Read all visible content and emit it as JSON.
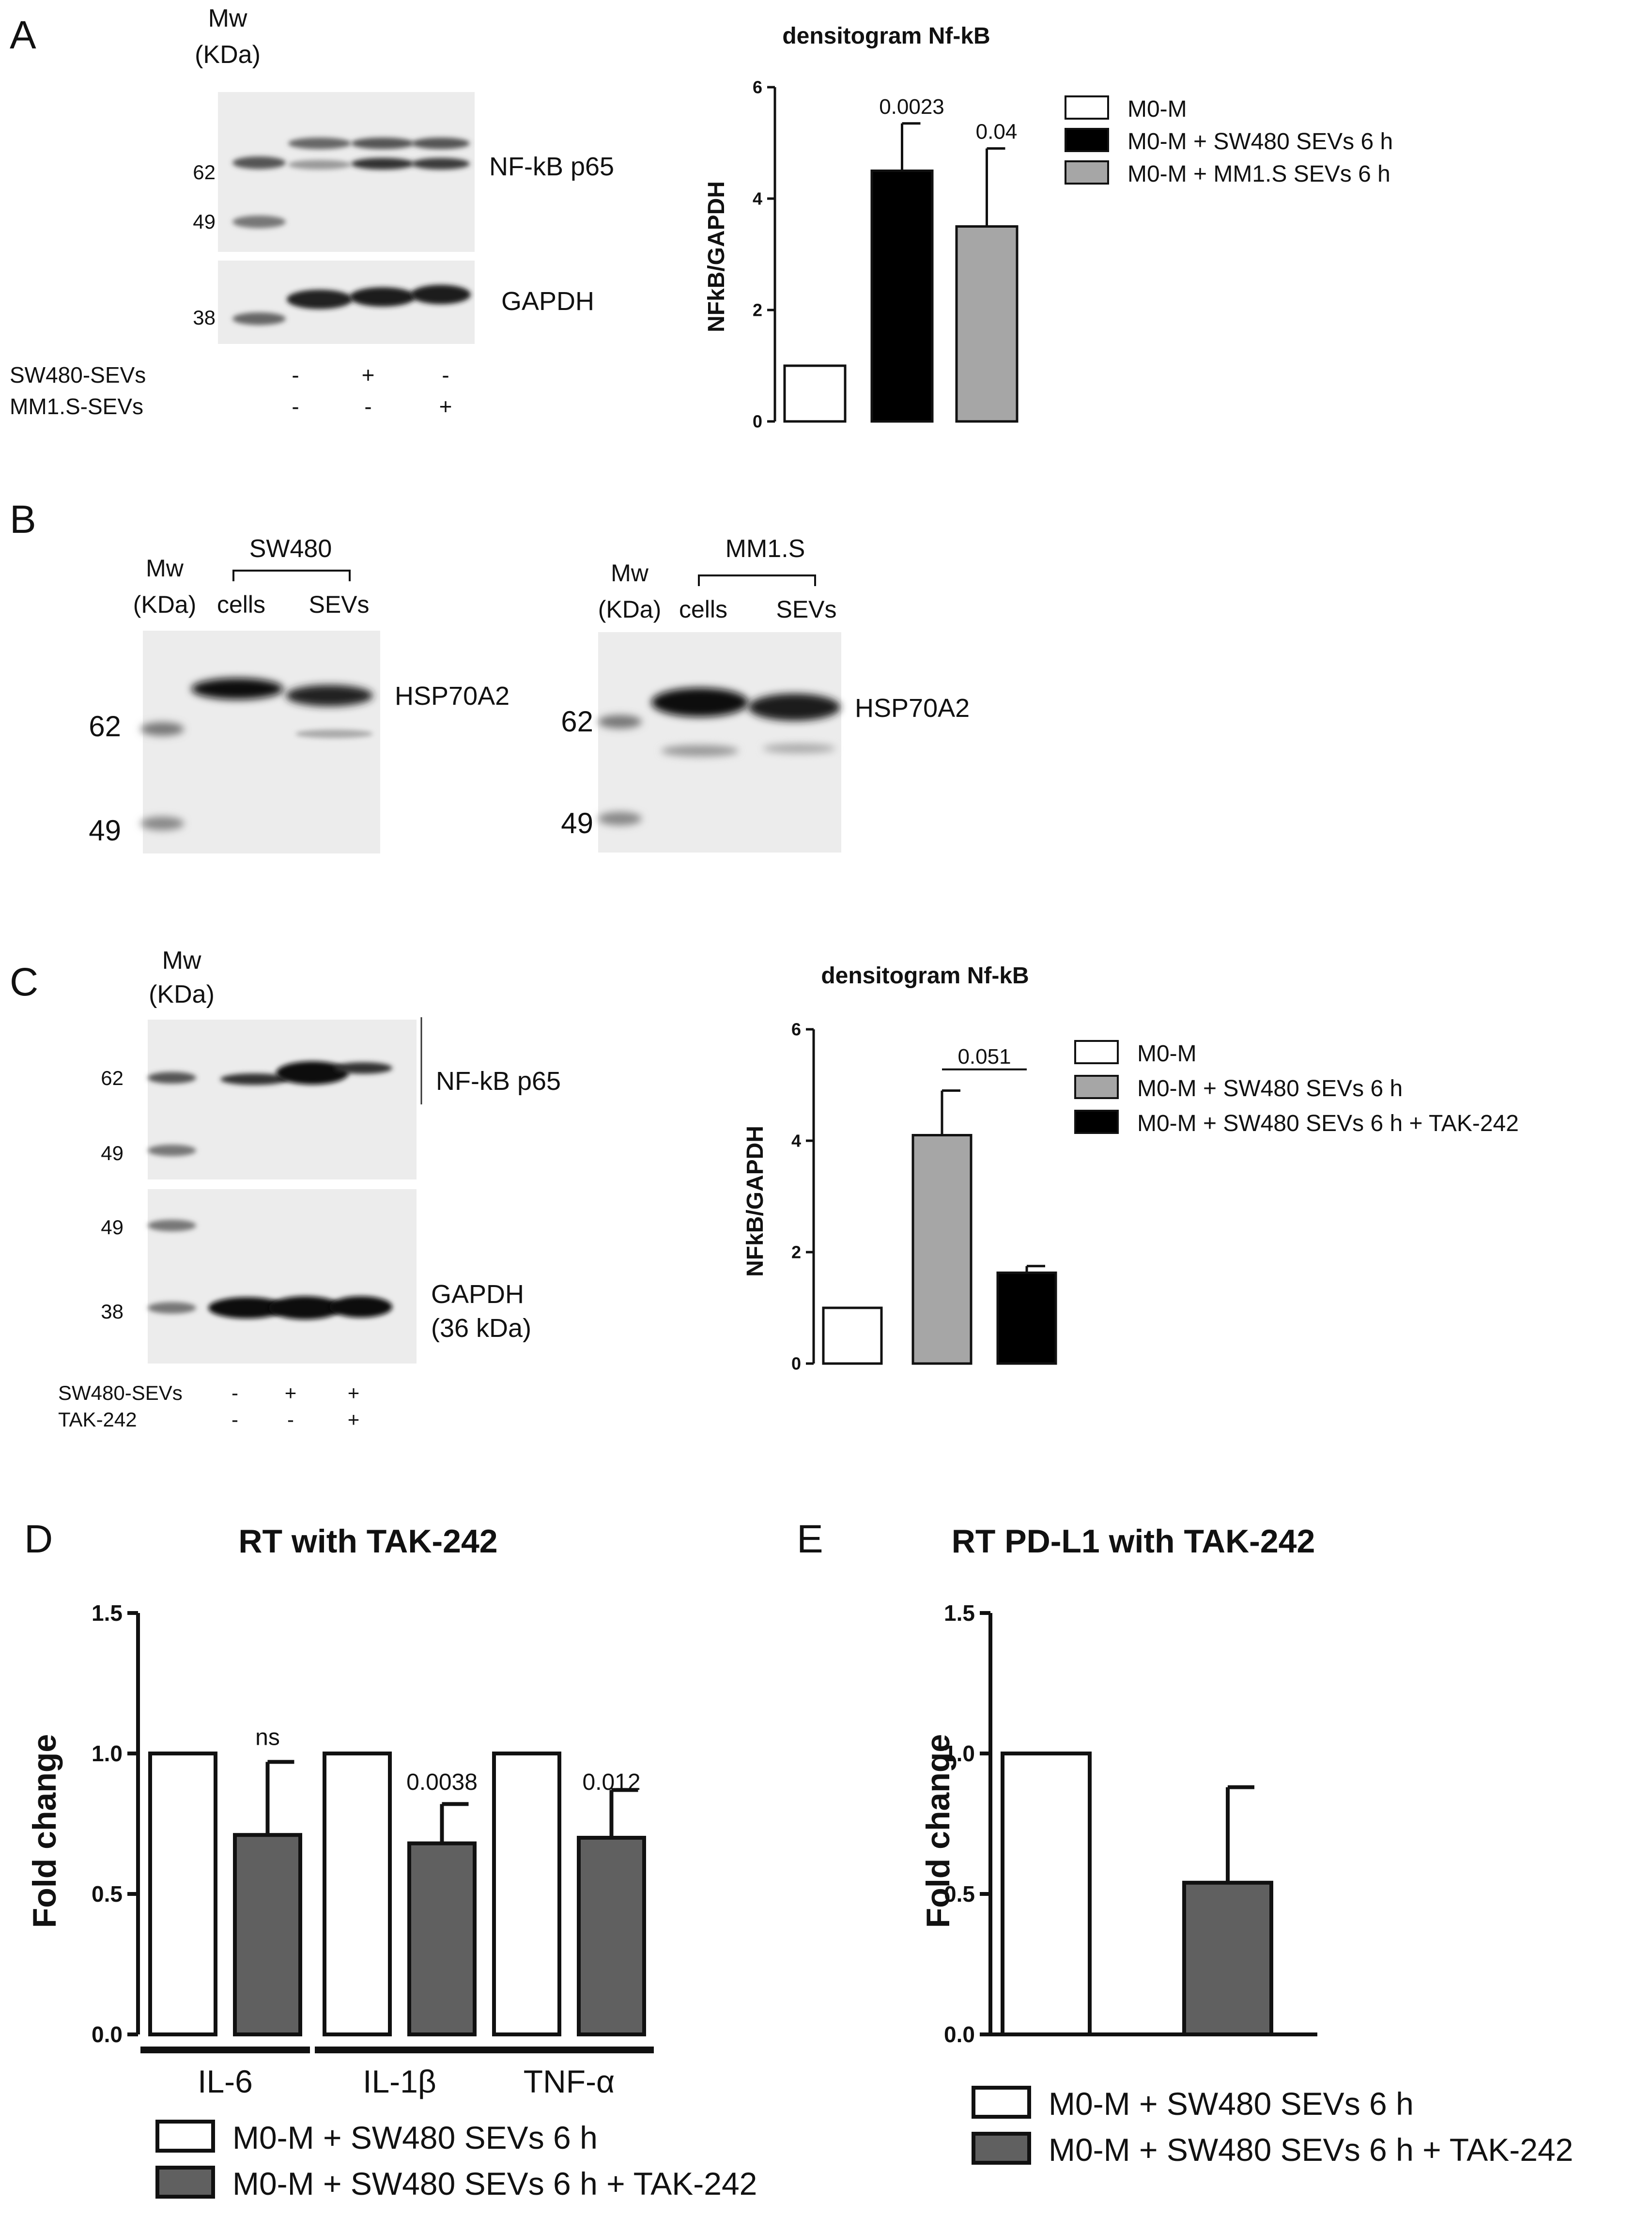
{
  "panel_labels": {
    "a": "A",
    "b": "B",
    "c": "C",
    "d": "D",
    "e": "E"
  },
  "panelA": {
    "mw": "Mw",
    "kda": "(KDa)",
    "markers": [
      "62",
      "49",
      "38"
    ],
    "band_labels": [
      "NF-kB p65",
      "GAPDH"
    ],
    "treatments": [
      {
        "name": "SW480-SEVs",
        "signs": [
          "-",
          "+",
          "-"
        ]
      },
      {
        "name": "MM1.S-SEVs",
        "signs": [
          "-",
          "-",
          "+"
        ]
      }
    ]
  },
  "panelB": {
    "left": {
      "cell_line": "SW480",
      "lanes": [
        "cells",
        "SEVs"
      ],
      "mw": "Mw",
      "kda": "(KDa)",
      "markers": [
        "62",
        "49"
      ],
      "band": "HSP70A2"
    },
    "right": {
      "cell_line": "MM1.S",
      "lanes": [
        "cells",
        "SEVs"
      ],
      "mw": "Mw",
      "kda": "(KDa)",
      "markers": [
        "62",
        "49"
      ],
      "band": "HSP70A2"
    }
  },
  "panelC": {
    "mw": "Mw",
    "kda": "(KDa)",
    "markers_top": [
      "62",
      "49"
    ],
    "markers_bottom": [
      "49",
      "38"
    ],
    "band_labels": [
      "NF-kB p65",
      "GAPDH"
    ],
    "gapdh_size": "(36 kDa)",
    "treatments": [
      {
        "name": "SW480-SEVs",
        "signs": [
          "-",
          "+",
          "+"
        ]
      },
      {
        "name": "TAK-242",
        "signs": [
          "-",
          "-",
          "+"
        ]
      }
    ]
  },
  "chart_data": [
    {
      "id": "A",
      "type": "bar",
      "title": "densitogram Nf-kB",
      "ylabel": "NFkB/GAPDH",
      "ylim": [
        0,
        6
      ],
      "yticks": [
        "0",
        "2",
        "4",
        "6"
      ],
      "series": [
        {
          "name": "M0-M",
          "value": 1.0,
          "error": 0,
          "color": "#ffffff",
          "label": ""
        },
        {
          "name": "M0-M + SW480 SEVs 6 h",
          "value": 4.5,
          "error": 0.85,
          "color": "#000000",
          "label": "0.0023"
        },
        {
          "name": "M0-M + MM1.S SEVs 6 h",
          "value": 3.5,
          "error": 1.4,
          "color": "#a6a6a6",
          "label": "0.04"
        }
      ],
      "legend": "right"
    },
    {
      "id": "C",
      "type": "bar",
      "title": "densitogram Nf-kB",
      "ylabel": "NFkB/GAPDH",
      "ylim": [
        0,
        6
      ],
      "yticks": [
        "0",
        "2",
        "4",
        "6"
      ],
      "series": [
        {
          "name": "M0-M",
          "value": 1.0,
          "error": 0,
          "color": "#ffffff"
        },
        {
          "name": "M0-M + SW480 SEVs 6 h",
          "value": 4.1,
          "error": 0.8,
          "color": "#a6a6a6"
        },
        {
          "name": "M0-M + SW480 SEVs 6 h + TAK-242",
          "value": 1.63,
          "error": 0.12,
          "color": "#000000"
        }
      ],
      "bracket_label": "0.051",
      "legend": "right"
    },
    {
      "id": "D",
      "type": "bar",
      "title": "RT with TAK-242",
      "ylabel": "Fold change",
      "ylim": [
        0,
        1.5
      ],
      "yticks": [
        "0.0",
        "0.5",
        "1.0",
        "1.5"
      ],
      "categories": [
        "IL-6",
        "IL-1β",
        "TNF-α"
      ],
      "series": [
        {
          "name": "M0-M + SW480 SEVs 6 h",
          "values": [
            1.0,
            1.0,
            1.0
          ],
          "errors": [
            0,
            0,
            0
          ],
          "color": "#ffffff"
        },
        {
          "name": "M0-M + SW480 SEVs 6 h + TAK-242",
          "values": [
            0.71,
            0.68,
            0.7
          ],
          "errors": [
            0.26,
            0.14,
            0.17
          ],
          "color": "#606060"
        }
      ],
      "annotations": [
        "ns",
        "0.0038",
        "0.012"
      ],
      "legend": "bottom"
    },
    {
      "id": "E",
      "type": "bar",
      "title": "RT PD-L1 with TAK-242",
      "ylabel": "Fold change",
      "ylim": [
        0,
        1.5
      ],
      "yticks": [
        "0.0",
        "0.5",
        "1.0",
        "1.5"
      ],
      "series": [
        {
          "name": "M0-M + SW480 SEVs 6 h",
          "value": 1.0,
          "error": 0,
          "color": "#ffffff"
        },
        {
          "name": "M0-M + SW480 SEVs 6 h + TAK-242",
          "value": 0.54,
          "error": 0.34,
          "color": "#606060"
        }
      ],
      "legend": "bottom"
    }
  ]
}
